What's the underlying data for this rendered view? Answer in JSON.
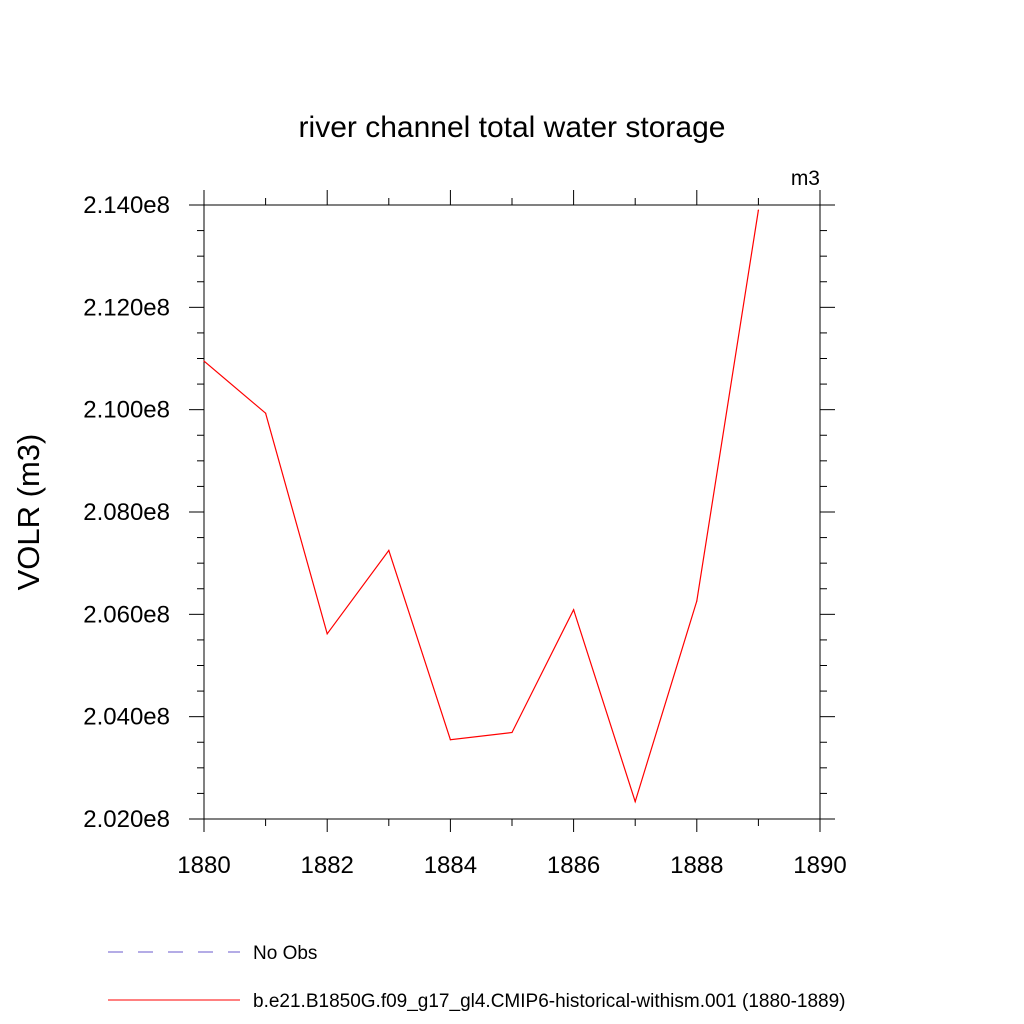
{
  "chart_data": {
    "type": "line",
    "title": "river channel total water storage",
    "units": "m3",
    "ylabel": "VOLR  (m3)",
    "xlabel": "",
    "xlim": [
      1880,
      1890
    ],
    "ylim": [
      202000000,
      214000000
    ],
    "x_ticks": [
      1880,
      1882,
      1884,
      1886,
      1888,
      1890
    ],
    "x_tick_labels": [
      "1880",
      "1882",
      "1884",
      "1886",
      "1888",
      "1890"
    ],
    "y_ticks": [
      202000000,
      204000000,
      206000000,
      208000000,
      210000000,
      212000000,
      214000000
    ],
    "y_tick_labels": [
      "2.020e8",
      "2.040e8",
      "2.060e8",
      "2.080e8",
      "2.100e8",
      "2.120e8",
      "2.140e8"
    ],
    "grid": false,
    "legend_placement": "bottom",
    "series": [
      {
        "name": "b.e21.B1850G.f09_g17_gl4.CMIP6-historical-withism.001 (1880-1889)",
        "color": "#ff0000",
        "style": "solid",
        "x": [
          1880,
          1881,
          1882,
          1883,
          1884,
          1885,
          1886,
          1887,
          1888,
          1889
        ],
        "y": [
          210950000,
          209930000,
          205620000,
          207250000,
          203550000,
          203690000,
          206090000,
          202340000,
          206260000,
          213900000
        ]
      }
    ],
    "legend": [
      {
        "label": "No Obs",
        "color": "#6a5acd",
        "style": "dashed"
      },
      {
        "label": "b.e21.B1850G.f09_g17_gl4.CMIP6-historical-withism.001 (1880-1889)",
        "color": "#ff0000",
        "style": "solid"
      }
    ]
  }
}
